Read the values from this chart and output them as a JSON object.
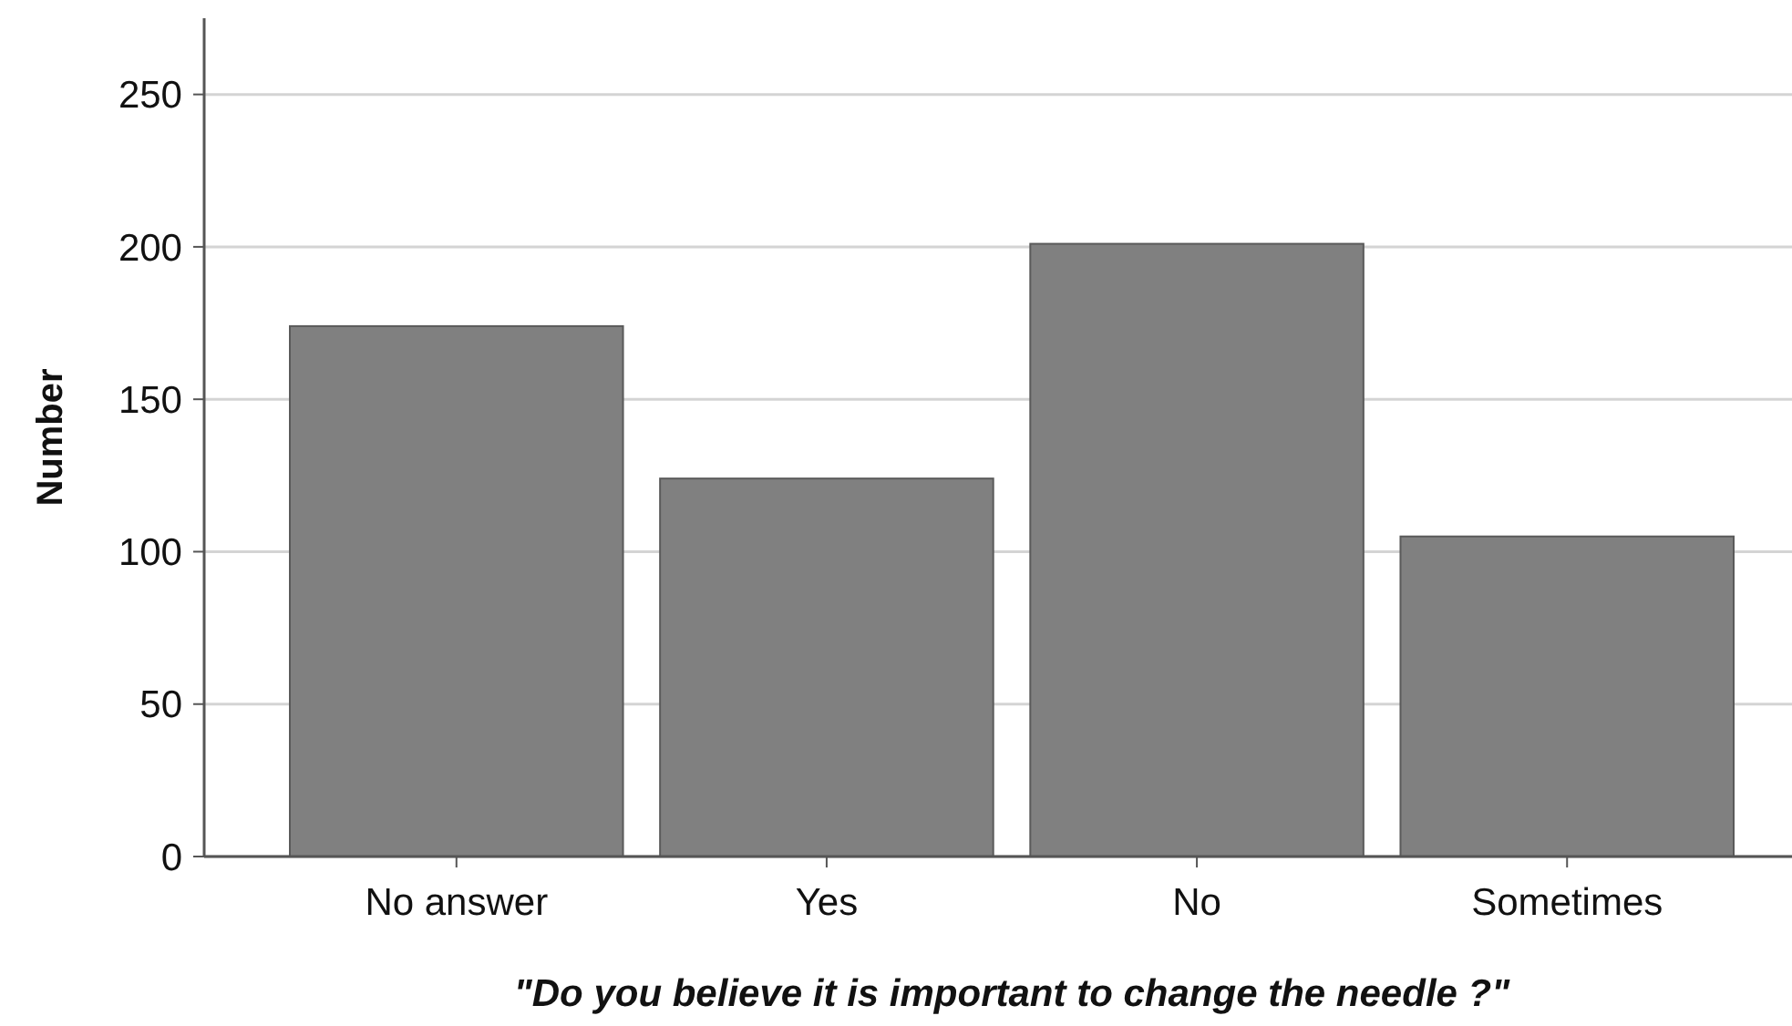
{
  "chart_data": {
    "type": "bar",
    "xlabel": "\"Do you believe it is important to change the needle ?\"",
    "ylabel": "Number",
    "categories": [
      "No answer",
      "Yes",
      "No",
      "Sometimes"
    ],
    "values": [
      174,
      124,
      201,
      105
    ],
    "color": "#808080",
    "ylim": [
      0,
      275
    ],
    "yticks": [
      0,
      50,
      100,
      150,
      200,
      250
    ],
    "grid": "y"
  }
}
